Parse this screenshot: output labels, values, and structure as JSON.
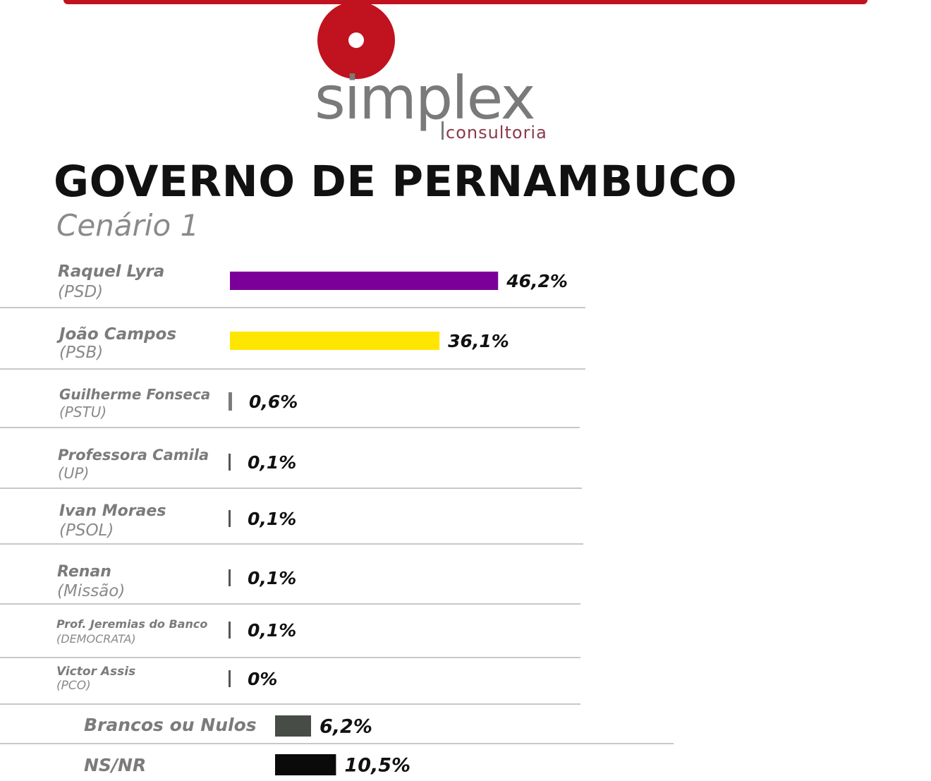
{
  "logo": {
    "name": "simplex",
    "tagline": "consultoria"
  },
  "colors": {
    "accent": "#c1121f",
    "logo_text": "#7a7a7a",
    "tagline_text": "#8b3a4a"
  },
  "chart_data": {
    "type": "bar",
    "orientation": "horizontal",
    "title": "GOVERNO DE PERNAMBUCO",
    "subtitle": "Cenário 1",
    "unit": "%",
    "grid": false,
    "categories": [
      {
        "name": "Raquel Lyra",
        "party": "(PSD)",
        "value": 46.2,
        "label": "46,2%",
        "color": "#7b0099"
      },
      {
        "name": "João Campos",
        "party": "(PSB)",
        "value": 36.1,
        "label": "36,1%",
        "color": "#ffe600"
      },
      {
        "name": "Guilherme Fonseca",
        "party": "(PSTU)",
        "value": 0.6,
        "label": "0,6%",
        "color": "#7a7a7a"
      },
      {
        "name": "Professora Camila",
        "party": "(UP)",
        "value": 0.1,
        "label": "0,1%",
        "color": "#555555"
      },
      {
        "name": "Ivan Moraes",
        "party": "(PSOL)",
        "value": 0.1,
        "label": "0,1%",
        "color": "#555555"
      },
      {
        "name": "Renan",
        "party": "(Missão)",
        "value": 0.1,
        "label": "0,1%",
        "color": "#555555"
      },
      {
        "name": "Prof. Jeremias do Banco",
        "party": "(DEMOCRATA)",
        "value": 0.1,
        "label": "0,1%",
        "color": "#555555"
      },
      {
        "name": "Victor Assis",
        "party": "(PCO)",
        "value": 0,
        "label": "0%",
        "color": "#555555"
      },
      {
        "name": "Brancos ou Nulos",
        "party": "",
        "value": 6.2,
        "label": "6,2%",
        "color": "#474c46"
      },
      {
        "name": "NS/NR",
        "party": "",
        "value": 10.5,
        "label": "10,5%",
        "color": "#0a0a0a"
      }
    ]
  }
}
